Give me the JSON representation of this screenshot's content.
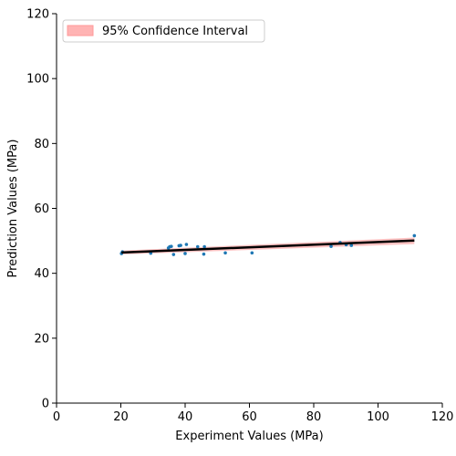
{
  "chart_data": {
    "type": "scatter",
    "title": "",
    "xlabel": "Experiment Values (MPa)",
    "ylabel": "Prediction Values (MPa)",
    "xlim": [
      0,
      120
    ],
    "ylim": [
      0,
      120
    ],
    "xticks": [
      "0",
      "20",
      "40",
      "60",
      "80",
      "100",
      "120"
    ],
    "yticks": [
      "0",
      "20",
      "40",
      "60",
      "80",
      "100",
      "120"
    ],
    "grid": false,
    "legend": {
      "placement": "top-left",
      "entries": [
        "95% Confidence Interval"
      ]
    },
    "colors": {
      "points": "#1f77b4",
      "fit_line": "#000000",
      "confidence_band": "#ff9999"
    },
    "series": [
      {
        "kind": "points",
        "x": [
          20.2,
          20.5,
          29.3,
          34.8,
          35.2,
          35.7,
          36.4,
          38.1,
          38.6,
          40.0,
          40.4,
          43.9,
          45.8,
          46.0,
          52.5,
          60.8,
          85.4,
          88.2,
          90.1,
          91.7,
          111.3
        ],
        "y": [
          46.1,
          46.6,
          46.2,
          47.8,
          48.2,
          48.3,
          45.8,
          48.5,
          48.6,
          46.1,
          48.9,
          48.2,
          45.9,
          48.2,
          46.3,
          46.3,
          48.3,
          49.5,
          48.8,
          48.6,
          51.6
        ]
      },
      {
        "kind": "fit-line",
        "x": [
          20.2,
          111.3
        ],
        "y": [
          46.4,
          50.1
        ]
      },
      {
        "kind": "confidence-band",
        "x": [
          20.2,
          111.3
        ],
        "upper": [
          47.0,
          51.0
        ],
        "lower": [
          45.8,
          49.0
        ]
      }
    ]
  }
}
